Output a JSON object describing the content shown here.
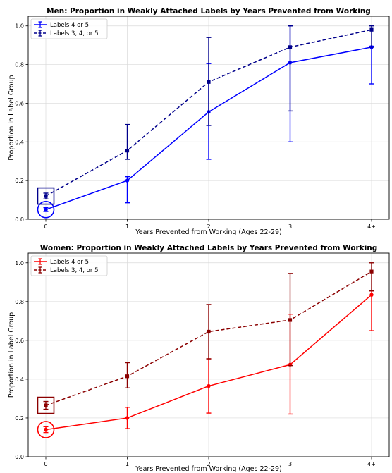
{
  "chart_data": [
    {
      "type": "line",
      "title": "Men: Proportion in Weakly Attached Labels by Years Prevented from Working",
      "xlabel": "Years Prevented from Working (Ages 22-29)",
      "ylabel": "Proportion in Label Group",
      "categories": [
        "0",
        "1",
        "2",
        "3",
        "4+"
      ],
      "ylim": [
        0,
        1.05
      ],
      "yticks": [
        "0.0",
        "0.2",
        "0.4",
        "0.6",
        "0.8",
        "1.0"
      ],
      "grid": true,
      "legend_position": "top-left",
      "series": [
        {
          "name": "Labels 4 or 5",
          "color": "#0000ff",
          "line_style": "solid",
          "marker": "circle",
          "values": [
            0.05,
            0.2,
            0.555,
            0.81,
            0.89
          ],
          "err_low": [
            0.04,
            0.085,
            0.31,
            0.4,
            0.7
          ],
          "err_high": [
            0.06,
            0.22,
            0.805,
            1.0,
            0.895
          ]
        },
        {
          "name": "Labels 3, 4, or 5",
          "color": "#00008b",
          "line_style": "dashed",
          "marker": "square",
          "values": [
            0.12,
            0.355,
            0.71,
            0.89,
            0.98
          ],
          "err_low": [
            0.105,
            0.31,
            0.485,
            0.56,
            0.89
          ],
          "err_high": [
            0.135,
            0.49,
            0.94,
            1.0,
            1.0
          ]
        }
      ],
      "highlight": [
        {
          "series_index": 0,
          "category_index": 0,
          "shape": "circle"
        },
        {
          "series_index": 1,
          "category_index": 0,
          "shape": "square"
        }
      ]
    },
    {
      "type": "line",
      "title": "Women: Proportion in Weakly Attached Labels by Years Prevented from Working",
      "xlabel": "Years Prevented from Working (Ages 22-29)",
      "ylabel": "Proportion in Label Group",
      "categories": [
        "0",
        "1",
        "2",
        "3",
        "4+"
      ],
      "ylim": [
        0,
        1.05
      ],
      "yticks": [
        "0.0",
        "0.2",
        "0.4",
        "0.6",
        "0.8",
        "1.0"
      ],
      "grid": true,
      "legend_position": "top-left",
      "series": [
        {
          "name": "Labels 4 or 5",
          "color": "#ff0000",
          "line_style": "solid",
          "marker": "circle",
          "values": [
            0.14,
            0.2,
            0.365,
            0.475,
            0.835
          ],
          "err_low": [
            0.125,
            0.145,
            0.225,
            0.22,
            0.65
          ],
          "err_high": [
            0.155,
            0.255,
            0.505,
            0.735,
            0.855
          ]
        },
        {
          "name": "Labels 3, 4, or 5",
          "color": "#8b0000",
          "line_style": "dashed",
          "marker": "square",
          "values": [
            0.265,
            0.415,
            0.645,
            0.705,
            0.955
          ],
          "err_low": [
            0.245,
            0.355,
            0.505,
            0.47,
            0.855
          ],
          "err_high": [
            0.285,
            0.485,
            0.785,
            0.945,
            1.0
          ]
        }
      ],
      "highlight": [
        {
          "series_index": 0,
          "category_index": 0,
          "shape": "circle"
        },
        {
          "series_index": 1,
          "category_index": 0,
          "shape": "square"
        }
      ]
    }
  ]
}
